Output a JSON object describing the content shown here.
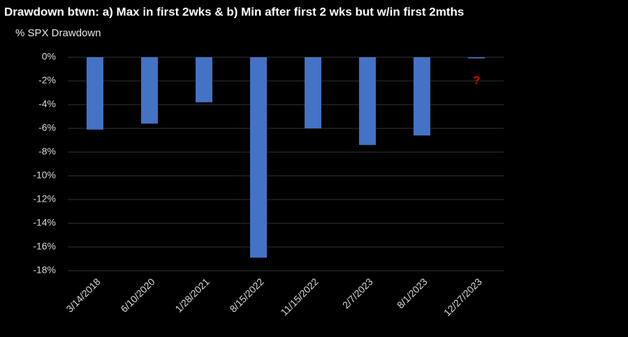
{
  "chart_data": {
    "type": "bar",
    "title": "Drawdown btwn: a) Max in first 2wks & b) Min after first 2 wks but w/in first 2mths",
    "subtitle": "% SPX Drawdown",
    "categories": [
      "3/14/2018",
      "6/10/2020",
      "1/28/2021",
      "8/15/2022",
      "11/15/2022",
      "2/7/2023",
      "8/1/2023",
      "12/27/2023"
    ],
    "values": [
      -6.1,
      -5.6,
      -3.8,
      -16.9,
      -6.0,
      -7.4,
      -6.6,
      -0.1
    ],
    "color": "#4472c4",
    "annotation": "?",
    "ylim": [
      -18,
      0
    ],
    "yticks": [
      {
        "value": 0,
        "label": "0%"
      },
      {
        "value": -2,
        "label": "-2%"
      },
      {
        "value": -4,
        "label": "-4%"
      },
      {
        "value": -6,
        "label": "-6%"
      },
      {
        "value": -8,
        "label": "-8%"
      },
      {
        "value": -10,
        "label": "-10%"
      },
      {
        "value": -12,
        "label": "-12%"
      },
      {
        "value": -14,
        "label": "-14%"
      },
      {
        "value": -16,
        "label": "-16%"
      },
      {
        "value": -18,
        "label": "-18%"
      }
    ],
    "grid": true
  }
}
